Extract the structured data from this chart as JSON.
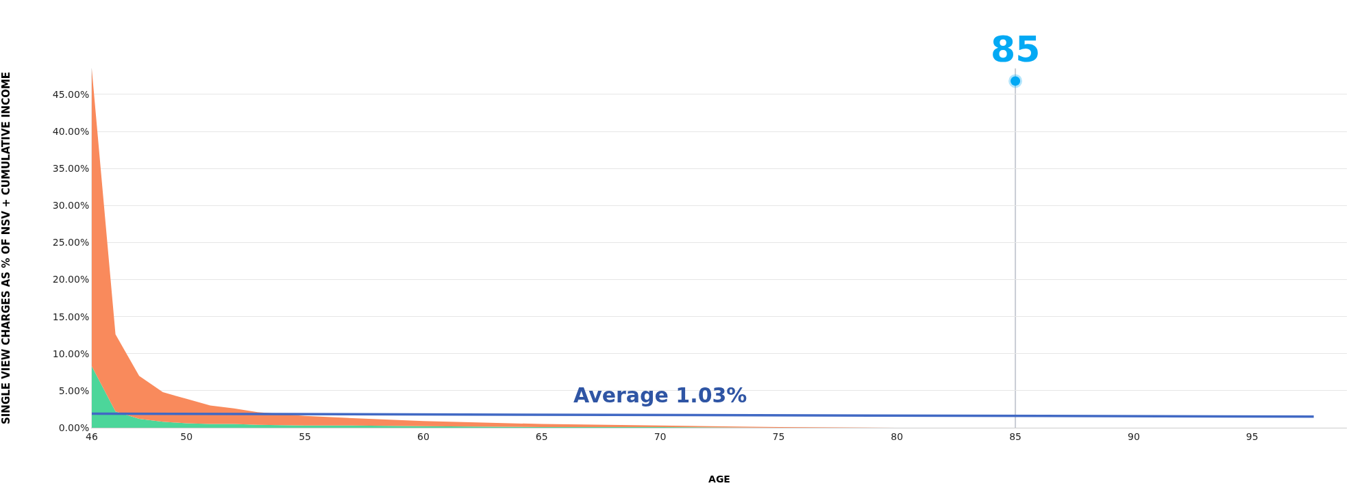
{
  "chart_data": {
    "type": "area",
    "xlabel": "AGE",
    "ylabel": "SINGLE VIEW CHARGES AS % OF NSV + CUMULATIVE INCOME",
    "x": [
      46,
      47,
      48,
      49,
      50,
      51,
      52,
      53,
      55,
      57,
      60,
      65,
      70,
      75,
      80,
      85,
      90,
      95,
      99
    ],
    "stacked": true,
    "series": [
      {
        "color": "#4cd69a",
        "values": [
          8.3,
          2.2,
          1.2,
          0.8,
          0.6,
          0.5,
          0.5,
          0.4,
          0.3,
          0.3,
          0.2,
          0.1,
          0.1,
          0,
          0,
          0,
          0,
          0,
          0
        ]
      },
      {
        "color": "#f98a5c",
        "values": [
          40.1,
          10.4,
          5.8,
          4.0,
          3.3,
          2.5,
          2.1,
          1.7,
          1.3,
          1.0,
          0.7,
          0.4,
          0.2,
          0.1,
          0,
          0,
          0,
          0,
          0
        ]
      },
      {
        "type": "line",
        "color": "#4169c4",
        "x": [
          46,
          97.6
        ],
        "values": [
          1.9,
          1.5
        ]
      },
      {
        "type": "scatter",
        "marker": "circle",
        "color": "#03a9f4",
        "x": [
          85
        ],
        "values": [
          46.8
        ]
      }
    ],
    "annotations": [
      {
        "text": "Average 1.03%",
        "x": 70,
        "y": 1.7
      },
      {
        "text": "85",
        "x": 85,
        "y": 46.8
      }
    ],
    "ref_lines": [
      {
        "axis": "x",
        "value": 85,
        "color": "#c8ccd4"
      }
    ],
    "xlim": [
      46,
      99
    ],
    "ylim": [
      0,
      48.5
    ],
    "xticks": [
      46,
      50,
      55,
      60,
      65,
      70,
      75,
      80,
      85,
      90,
      95
    ],
    "yticks": [
      {
        "value": 0,
        "label": "0.00%"
      },
      {
        "value": 5,
        "label": "5.00%"
      },
      {
        "value": 10,
        "label": "10.00%"
      },
      {
        "value": 15,
        "label": "15.00%"
      },
      {
        "value": 20,
        "label": "20.00%"
      },
      {
        "value": 25,
        "label": "25.00%"
      },
      {
        "value": 30,
        "label": "30.00%"
      },
      {
        "value": 35,
        "label": "35.00%"
      },
      {
        "value": 40,
        "label": "40.00%"
      },
      {
        "value": 45,
        "label": "45.00%"
      }
    ],
    "grid": "y"
  }
}
